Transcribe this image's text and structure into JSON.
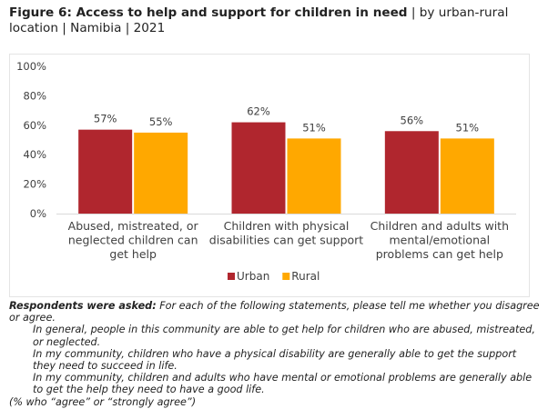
{
  "title": {
    "bold": "Figure 6: Access to help and support for children in need",
    "rest": " | by urban-rural location | Namibia | 2021"
  },
  "colors": {
    "urban": "#B0262E",
    "rural": "#FFA800",
    "text": "#404040",
    "axis": "#d9d9d9"
  },
  "chart_data": {
    "type": "bar",
    "title": "Access to help and support for children in need",
    "xlabel": "",
    "ylabel": "",
    "ylim": [
      0,
      100
    ],
    "yticks": [
      "0%",
      "20%",
      "40%",
      "60%",
      "80%",
      "100%"
    ],
    "grid": false,
    "legend_position": "bottom-center",
    "categories": [
      [
        "Abused, mistreated, or",
        "neglected children can",
        "get help"
      ],
      [
        "Children with physical",
        "disabilities can get support"
      ],
      [
        "Children and adults with",
        "mental/emotional",
        "problems can get help"
      ]
    ],
    "series": [
      {
        "name": "Urban",
        "values": [
          57,
          62,
          56
        ],
        "labels": [
          "57%",
          "62%",
          "56%"
        ]
      },
      {
        "name": "Rural",
        "values": [
          55,
          51,
          51
        ],
        "labels": [
          "55%",
          "51%",
          "51%"
        ]
      }
    ]
  },
  "notes": {
    "lead": "Respondents were asked:",
    "question": " For each of the following statements, please tell me whether you disagree or agree.",
    "statements": [
      "In general, people in this community are able to get help for children who are abused, mistreated, or neglected.",
      "In my community, children who have a physical disability are generally able to get the support they need to succeed in life.",
      "In my community, children and adults who have mental or emotional problems are generally able to get the help they need to have a good life."
    ],
    "footer": "(% who “agree” or “strongly agree”)"
  }
}
